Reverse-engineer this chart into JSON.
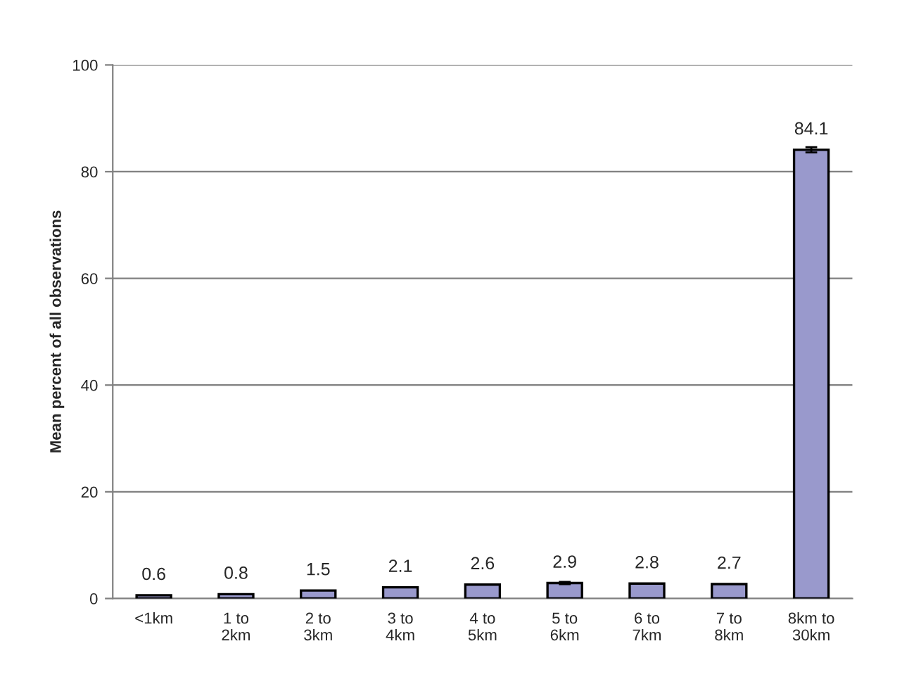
{
  "chart_data": {
    "type": "bar",
    "ylabel": "Mean percent of all observations",
    "categories": [
      "<1km",
      "1 to\n2km",
      "2 to\n3km",
      "3 to\n4km",
      "4 to\n5km",
      "5 to\n6km",
      "6 to\n7km",
      "7 to\n8km",
      "8km to\n30km"
    ],
    "values": [
      0.6,
      0.8,
      1.5,
      2.1,
      2.6,
      2.9,
      2.8,
      2.7,
      84.1
    ],
    "errors": [
      null,
      null,
      null,
      null,
      null,
      0.2,
      null,
      null,
      0.5
    ],
    "color": "#9999cc",
    "ylim": [
      0,
      100
    ],
    "yticks": [
      0,
      20,
      40,
      60,
      80,
      100
    ],
    "grid": "y",
    "data_labels": true
  }
}
